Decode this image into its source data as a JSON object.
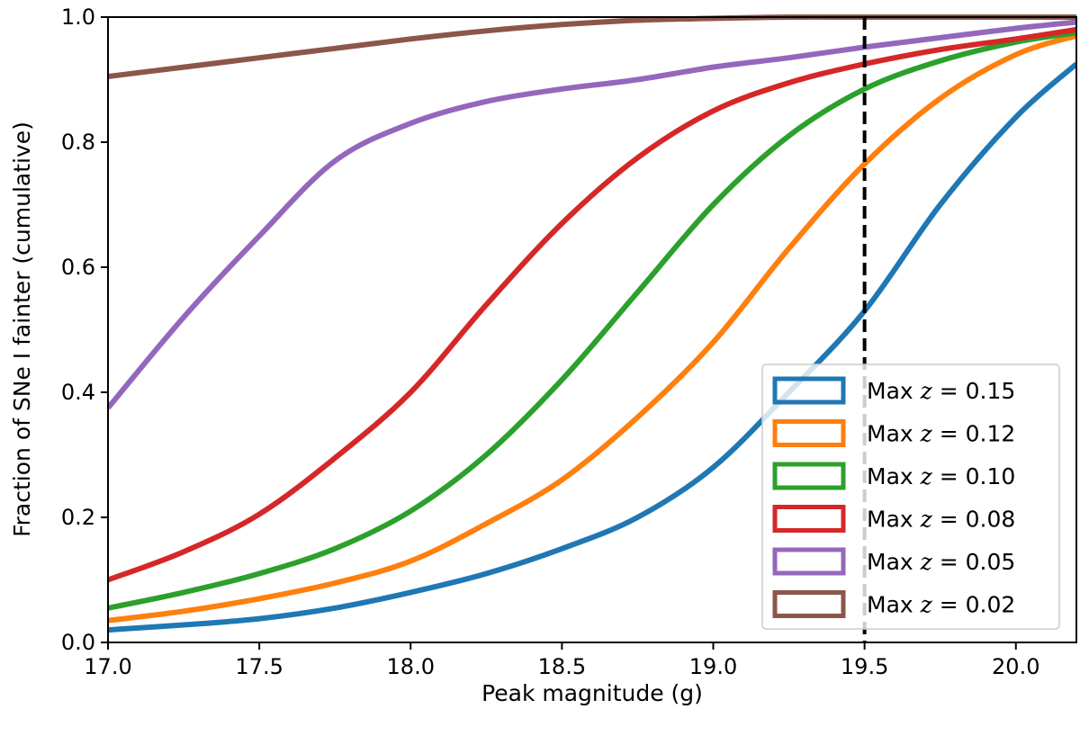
{
  "chart_data": {
    "type": "line",
    "title": "",
    "xlabel": "Peak magnitude (g)",
    "ylabel": "Fraction of SNe I fainter (cumulative)",
    "xlim": [
      17.0,
      20.2
    ],
    "ylim": [
      0.0,
      1.0
    ],
    "grid": false,
    "x_ticks": [
      "17.0",
      "17.5",
      "18.0",
      "18.5",
      "19.0",
      "19.5",
      "20.0"
    ],
    "y_ticks": [
      "0.0",
      "0.2",
      "0.4",
      "0.6",
      "0.8",
      "1.0"
    ],
    "x": [
      17.0,
      17.25,
      17.5,
      17.75,
      18.0,
      18.25,
      18.5,
      18.75,
      19.0,
      19.25,
      19.5,
      19.75,
      20.0,
      20.2
    ],
    "series": [
      {
        "name": "Max z = 0.15",
        "prefix": "Max",
        "var": "z",
        "value": "= 0.15",
        "color": "#1f77b4",
        "values": [
          0.02,
          0.028,
          0.038,
          0.055,
          0.08,
          0.11,
          0.15,
          0.2,
          0.28,
          0.4,
          0.53,
          0.7,
          0.84,
          0.925
        ]
      },
      {
        "name": "Max z = 0.12",
        "prefix": "Max",
        "var": "z",
        "value": "= 0.12",
        "color": "#ff7f0e",
        "values": [
          0.035,
          0.05,
          0.07,
          0.095,
          0.13,
          0.19,
          0.26,
          0.36,
          0.48,
          0.63,
          0.765,
          0.87,
          0.94,
          0.97
        ]
      },
      {
        "name": "Max z = 0.10",
        "prefix": "Max",
        "var": "z",
        "value": "= 0.10",
        "color": "#2ca02c",
        "values": [
          0.055,
          0.08,
          0.11,
          0.15,
          0.21,
          0.3,
          0.42,
          0.56,
          0.7,
          0.81,
          0.885,
          0.93,
          0.96,
          0.975
        ]
      },
      {
        "name": "Max z = 0.08",
        "prefix": "Max",
        "var": "z",
        "value": "= 0.08",
        "color": "#d62728",
        "values": [
          0.1,
          0.145,
          0.205,
          0.295,
          0.4,
          0.54,
          0.67,
          0.775,
          0.85,
          0.895,
          0.925,
          0.948,
          0.965,
          0.98
        ]
      },
      {
        "name": "Max z = 0.05",
        "prefix": "Max",
        "var": "z",
        "value": "= 0.05",
        "color": "#9467bd",
        "values": [
          0.375,
          0.52,
          0.65,
          0.77,
          0.83,
          0.865,
          0.885,
          0.9,
          0.92,
          0.935,
          0.952,
          0.967,
          0.982,
          0.992
        ]
      },
      {
        "name": "Max z = 0.02",
        "prefix": "Max",
        "var": "z",
        "value": "= 0.02",
        "color": "#8c564b",
        "values": [
          0.905,
          0.92,
          0.935,
          0.95,
          0.965,
          0.978,
          0.988,
          0.995,
          0.998,
          1.0,
          1.0,
          1.0,
          1.0,
          1.0
        ]
      }
    ],
    "vline": {
      "x": 19.5,
      "style": "dashed",
      "color": "#000000"
    },
    "legend_position": "lower-right"
  }
}
